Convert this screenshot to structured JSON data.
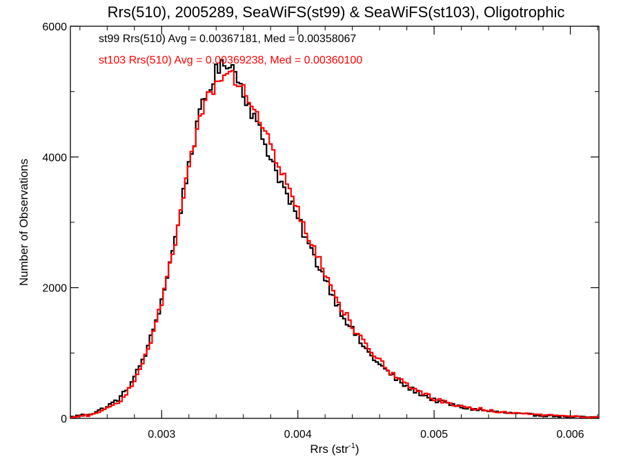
{
  "chart_data": {
    "type": "histogram",
    "title": "Rrs(510), 2005289, SeaWiFS(st99) & SeaWiFS(st103), Oligotrophic",
    "xlabel_main": "Rrs (str",
    "xlabel_sup": "-1",
    "xlabel_close": ")",
    "ylabel": "Number of Observations",
    "xlim": [
      0.00233,
      0.00621
    ],
    "ylim": [
      0,
      6000
    ],
    "x_ticks": [
      0.003,
      0.004,
      0.005,
      0.006
    ],
    "x_tick_labels": [
      "0.003",
      "0.004",
      "0.005",
      "0.006"
    ],
    "y_ticks": [
      0,
      2000,
      4000,
      6000
    ],
    "y_tick_labels": [
      "0",
      "2000",
      "4000",
      "6000"
    ],
    "x_minor_step": 0.0002,
    "y_minor_step": 1000,
    "grid": false,
    "legend_placement": "top-left",
    "bin_width": 2e-05,
    "series": [
      {
        "name": "st99",
        "color": "#000000",
        "label": "st99 Rrs(510) Avg = 0.00367181, Med = 0.00358067",
        "profile": [
          [
            0.00233,
            20
          ],
          [
            0.0025,
            80
          ],
          [
            0.0026,
            180
          ],
          [
            0.0027,
            320
          ],
          [
            0.0028,
            620
          ],
          [
            0.0029,
            1080
          ],
          [
            0.003,
            1800
          ],
          [
            0.0031,
            2750
          ],
          [
            0.0032,
            3900
          ],
          [
            0.0033,
            4800
          ],
          [
            0.0034,
            5300
          ],
          [
            0.0035,
            5480
          ],
          [
            0.0036,
            5000
          ],
          [
            0.0037,
            4500
          ],
          [
            0.0038,
            4000
          ],
          [
            0.0039,
            3500
          ],
          [
            0.004,
            3050
          ],
          [
            0.0041,
            2550
          ],
          [
            0.0042,
            2150
          ],
          [
            0.0043,
            1700
          ],
          [
            0.0044,
            1350
          ],
          [
            0.0045,
            1050
          ],
          [
            0.0046,
            820
          ],
          [
            0.0047,
            640
          ],
          [
            0.0048,
            480
          ],
          [
            0.0049,
            380
          ],
          [
            0.005,
            280
          ],
          [
            0.0052,
            170
          ],
          [
            0.0054,
            110
          ],
          [
            0.0056,
            70
          ],
          [
            0.0058,
            45
          ],
          [
            0.006,
            25
          ],
          [
            0.00621,
            15
          ]
        ]
      },
      {
        "name": "st103",
        "color": "#ff0000",
        "label": "st103 Rrs(510) Avg = 0.00369238, Med = 0.00360100",
        "profile": [
          [
            0.00233,
            10
          ],
          [
            0.0025,
            60
          ],
          [
            0.0026,
            150
          ],
          [
            0.0027,
            280
          ],
          [
            0.0028,
            560
          ],
          [
            0.0029,
            1020
          ],
          [
            0.003,
            1750
          ],
          [
            0.0031,
            2700
          ],
          [
            0.0032,
            3850
          ],
          [
            0.0033,
            4750
          ],
          [
            0.0034,
            5150
          ],
          [
            0.0035,
            5260
          ],
          [
            0.0036,
            5100
          ],
          [
            0.0037,
            4650
          ],
          [
            0.0038,
            4150
          ],
          [
            0.0039,
            3650
          ],
          [
            0.004,
            3150
          ],
          [
            0.0041,
            2650
          ],
          [
            0.0042,
            2220
          ],
          [
            0.0043,
            1780
          ],
          [
            0.0044,
            1420
          ],
          [
            0.0045,
            1110
          ],
          [
            0.0046,
            870
          ],
          [
            0.0047,
            680
          ],
          [
            0.0048,
            520
          ],
          [
            0.0049,
            400
          ],
          [
            0.005,
            300
          ],
          [
            0.0052,
            185
          ],
          [
            0.0054,
            120
          ],
          [
            0.0056,
            75
          ],
          [
            0.0058,
            50
          ],
          [
            0.006,
            30
          ],
          [
            0.00621,
            18
          ]
        ]
      }
    ]
  }
}
